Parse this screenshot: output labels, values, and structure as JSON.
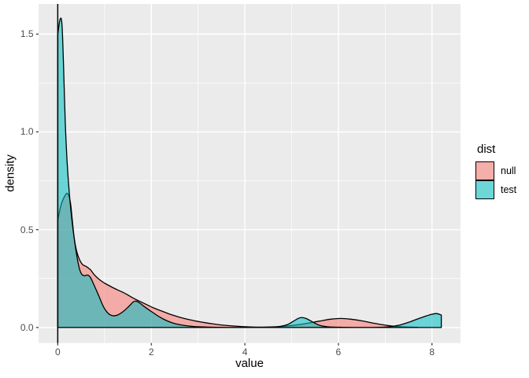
{
  "chart_data": {
    "type": "area",
    "subtype": "overlaid-density-ggplot",
    "title": "",
    "xlabel": "value",
    "ylabel": "density",
    "xlim": [
      -0.41,
      8.61
    ],
    "ylim": [
      -0.079,
      1.654
    ],
    "grid": "on",
    "panel_background": "#EBEBEB",
    "grid_color": "#FFFFFF",
    "tick_label_color": "#4D4D4D",
    "curve_outline_color": "#000000",
    "fill_alpha": 0.55,
    "vline_x": 0,
    "x_major_ticks": {
      "values": [
        0,
        2,
        4,
        6,
        8
      ],
      "labels": [
        "0",
        "2",
        "4",
        "6",
        "8"
      ]
    },
    "x_minor_ticks": [
      1,
      3,
      5,
      7
    ],
    "y_major_ticks": {
      "values": [
        0,
        0.5,
        1.0,
        1.5
      ],
      "labels": [
        "0.0",
        "0.5",
        "1.0",
        "1.5"
      ]
    },
    "y_minor_ticks": [
      0.25,
      0.75,
      1.25
    ],
    "legend": {
      "title": "dist",
      "position": "right",
      "items": [
        {
          "label": "null",
          "color": "#F8766D"
        },
        {
          "label": "test",
          "color": "#00BFC4"
        }
      ]
    },
    "series": [
      {
        "name": "null",
        "color": "#F8766D",
        "points": [
          [
            0.0,
            0.55
          ],
          [
            0.07,
            0.625
          ],
          [
            0.14,
            0.668
          ],
          [
            0.21,
            0.685
          ],
          [
            0.27,
            0.64
          ],
          [
            0.31,
            0.55
          ],
          [
            0.35,
            0.46
          ],
          [
            0.4,
            0.395
          ],
          [
            0.46,
            0.35
          ],
          [
            0.53,
            0.322
          ],
          [
            0.61,
            0.312
          ],
          [
            0.7,
            0.295
          ],
          [
            0.78,
            0.27
          ],
          [
            0.89,
            0.245
          ],
          [
            1.0,
            0.227
          ],
          [
            1.17,
            0.205
          ],
          [
            1.3,
            0.19
          ],
          [
            1.45,
            0.173
          ],
          [
            1.6,
            0.152
          ],
          [
            1.75,
            0.134
          ],
          [
            1.9,
            0.117
          ],
          [
            2.05,
            0.1
          ],
          [
            2.2,
            0.086
          ],
          [
            2.4,
            0.068
          ],
          [
            2.6,
            0.053
          ],
          [
            2.8,
            0.041
          ],
          [
            3.0,
            0.031
          ],
          [
            3.25,
            0.021
          ],
          [
            3.5,
            0.013
          ],
          [
            3.8,
            0.007
          ],
          [
            4.1,
            0.003
          ],
          [
            4.4,
            0.002
          ],
          [
            4.7,
            0.004
          ],
          [
            5.0,
            0.01
          ],
          [
            5.3,
            0.02
          ],
          [
            5.6,
            0.033
          ],
          [
            5.85,
            0.043
          ],
          [
            6.05,
            0.046
          ],
          [
            6.25,
            0.043
          ],
          [
            6.5,
            0.034
          ],
          [
            6.75,
            0.022
          ],
          [
            7.0,
            0.012
          ],
          [
            7.25,
            0.005
          ],
          [
            7.5,
            0.002
          ],
          [
            7.7,
            0.001
          ]
        ]
      },
      {
        "name": "test",
        "color": "#00BFC4",
        "points": [
          [
            0.0,
            1.5
          ],
          [
            0.05,
            1.575
          ],
          [
            0.09,
            1.55
          ],
          [
            0.125,
            1.33
          ],
          [
            0.16,
            1.05
          ],
          [
            0.2,
            0.85
          ],
          [
            0.25,
            0.68
          ],
          [
            0.3,
            0.555
          ],
          [
            0.36,
            0.44
          ],
          [
            0.42,
            0.35
          ],
          [
            0.47,
            0.295
          ],
          [
            0.52,
            0.27
          ],
          [
            0.58,
            0.265
          ],
          [
            0.64,
            0.268
          ],
          [
            0.7,
            0.255
          ],
          [
            0.78,
            0.215
          ],
          [
            0.88,
            0.16
          ],
          [
            0.98,
            0.105
          ],
          [
            1.08,
            0.072
          ],
          [
            1.18,
            0.06
          ],
          [
            1.28,
            0.064
          ],
          [
            1.4,
            0.082
          ],
          [
            1.52,
            0.108
          ],
          [
            1.63,
            0.133
          ],
          [
            1.72,
            0.13
          ],
          [
            1.85,
            0.107
          ],
          [
            2.0,
            0.082
          ],
          [
            2.15,
            0.058
          ],
          [
            2.3,
            0.038
          ],
          [
            2.5,
            0.02
          ],
          [
            2.75,
            0.009
          ],
          [
            3.0,
            0.004
          ],
          [
            3.4,
            0.001
          ],
          [
            3.9,
            0.0
          ],
          [
            4.4,
            0.001
          ],
          [
            4.7,
            0.004
          ],
          [
            4.9,
            0.014
          ],
          [
            5.05,
            0.034
          ],
          [
            5.18,
            0.05
          ],
          [
            5.3,
            0.047
          ],
          [
            5.45,
            0.028
          ],
          [
            5.6,
            0.011
          ],
          [
            5.8,
            0.003
          ],
          [
            6.1,
            0.001
          ],
          [
            6.6,
            0.0
          ],
          [
            7.0,
            0.002
          ],
          [
            7.3,
            0.012
          ],
          [
            7.55,
            0.031
          ],
          [
            7.8,
            0.053
          ],
          [
            8.0,
            0.068
          ],
          [
            8.1,
            0.071
          ],
          [
            8.2,
            0.064
          ]
        ]
      }
    ]
  }
}
